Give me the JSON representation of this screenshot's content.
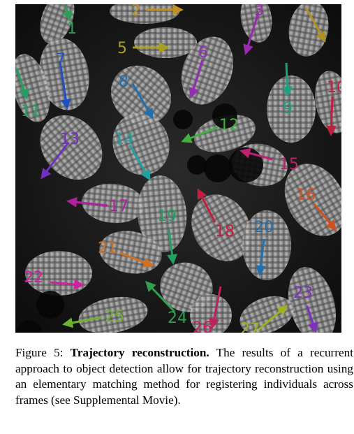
{
  "figure": {
    "tracks": [
      {
        "id": "1",
        "color": "#2e9d55"
      },
      {
        "id": "2",
        "color": "#c09020"
      },
      {
        "id": "3",
        "color": "#9a2ab0"
      },
      {
        "id": "4",
        "color": "#b09020"
      },
      {
        "id": "5",
        "color": "#aaa020"
      },
      {
        "id": "6",
        "color": "#9030b0"
      },
      {
        "id": "7",
        "color": "#2050c0"
      },
      {
        "id": "8",
        "color": "#2070b0"
      },
      {
        "id": "9",
        "color": "#20a080"
      },
      {
        "id": "10",
        "color": "#c02040"
      },
      {
        "id": "11",
        "color": "#20a060"
      },
      {
        "id": "12",
        "color": "#40b040"
      },
      {
        "id": "13",
        "color": "#7030c0"
      },
      {
        "id": "14",
        "color": "#20a0a0"
      },
      {
        "id": "15",
        "color": "#c02070"
      },
      {
        "id": "16",
        "color": "#d05020"
      },
      {
        "id": "17",
        "color": "#b020a0"
      },
      {
        "id": "18",
        "color": "#c02040"
      },
      {
        "id": "19",
        "color": "#20a060"
      },
      {
        "id": "20",
        "color": "#2070b0"
      },
      {
        "id": "21",
        "color": "#d07020"
      },
      {
        "id": "22",
        "color": "#d020a0"
      },
      {
        "id": "23",
        "color": "#8030c0"
      },
      {
        "id": "24",
        "color": "#30a050"
      },
      {
        "id": "25",
        "color": "#70b030"
      },
      {
        "id": "26",
        "color": "#c02060"
      },
      {
        "id": "27",
        "color": "#a0b020"
      }
    ]
  },
  "caption": {
    "figure_label": "Figure 5:",
    "title": "Trajectory reconstruction.",
    "body": "The results of a recurrent approach to object detection allow for trajectory reconstruction using an elementary matching method for registering individuals across frames (see Supplemental Movie)."
  }
}
